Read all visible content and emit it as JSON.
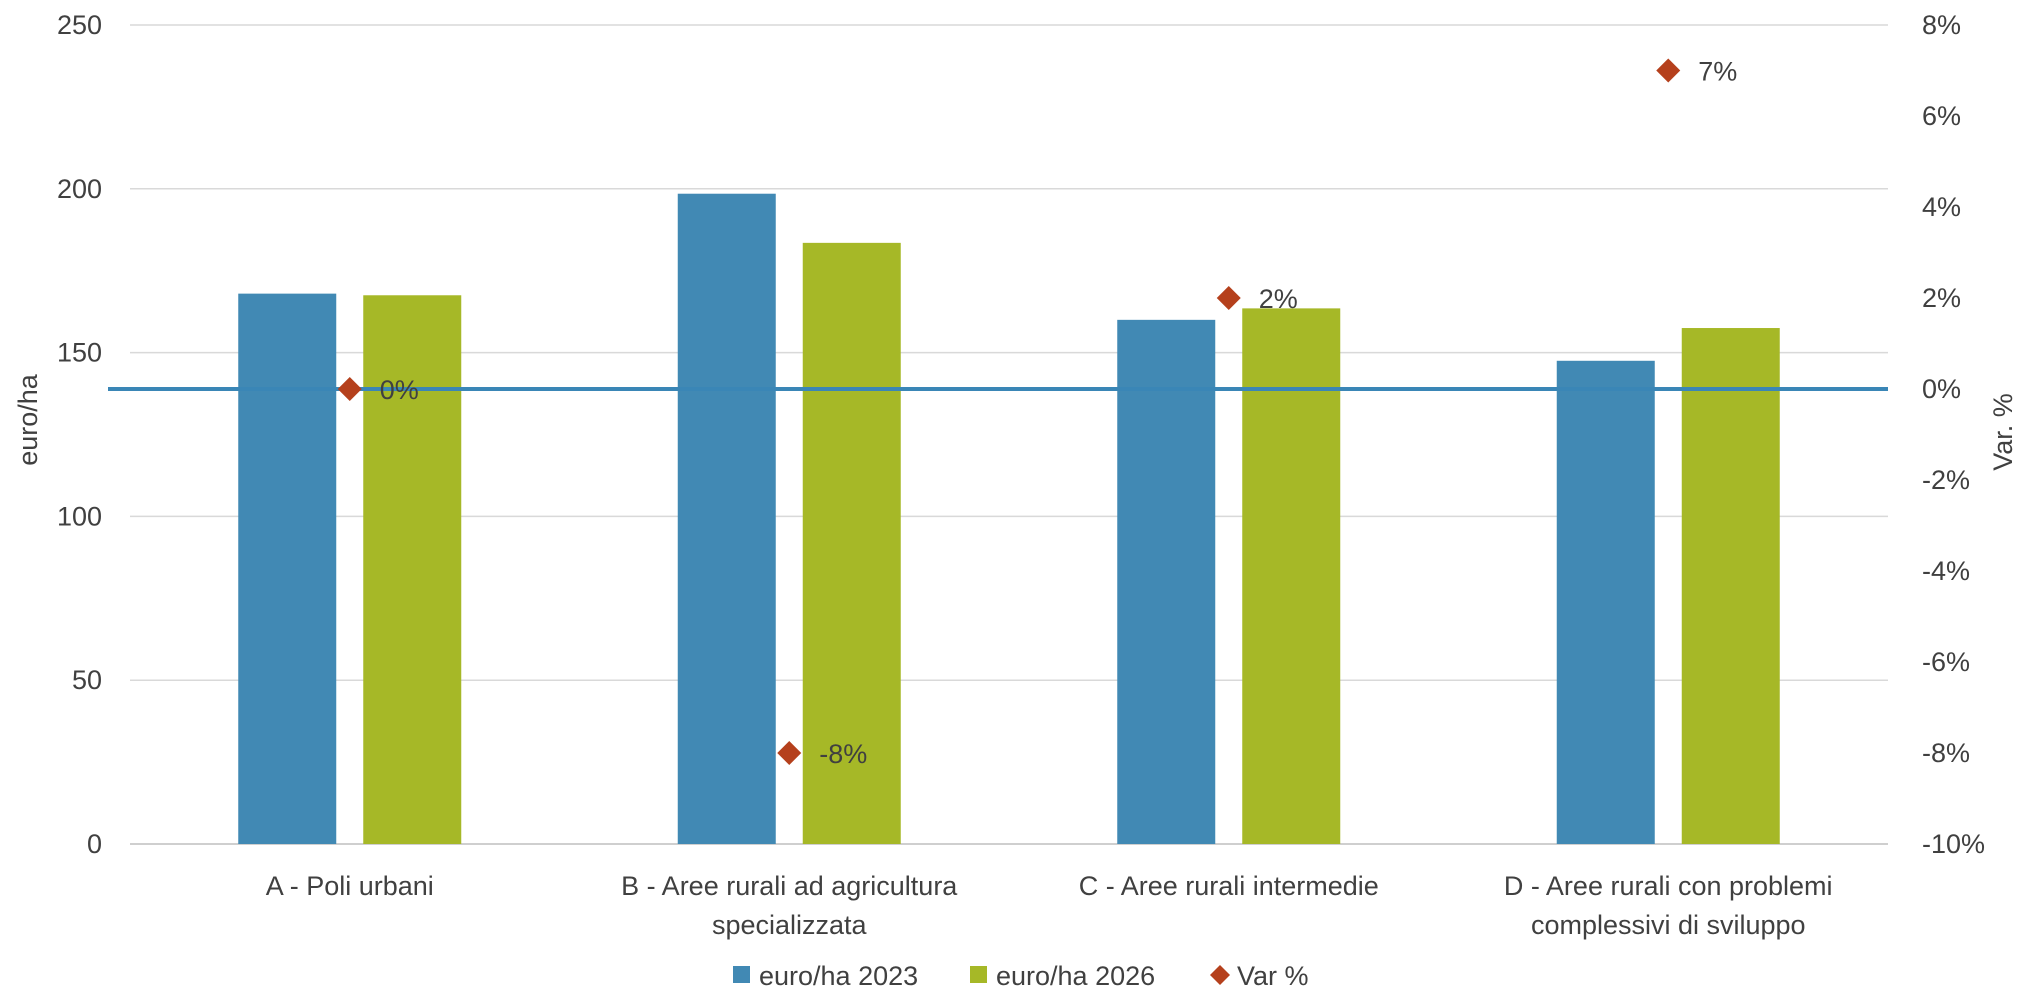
{
  "chart_data": {
    "type": "bar",
    "categories": [
      [
        "A - Poli urbani"
      ],
      [
        "B - Aree rurali ad agricultura",
        "specializzata"
      ],
      [
        "C - Aree rurali intermedie"
      ],
      [
        "D - Aree rurali con problemi",
        "complessivi di sviluppo"
      ]
    ],
    "series": [
      {
        "name": "euro/ha 2023",
        "values": [
          168,
          198.5,
          160,
          147.5
        ],
        "color": "#4189b4",
        "axis": "left"
      },
      {
        "name": "euro/ha 2026",
        "values": [
          167.5,
          183.5,
          163.5,
          157.5
        ],
        "color": "#a6b827",
        "axis": "left"
      }
    ],
    "var_series": {
      "name": "Var %",
      "values": [
        0,
        -8,
        2,
        7
      ],
      "labels": [
        "0%",
        "-8%",
        "2%",
        "7%"
      ],
      "color": "#b5401c",
      "marker": "diamond",
      "axis": "right"
    },
    "ylabel": "euro/ha",
    "y2label": "Var. %",
    "ylim": [
      0,
      250
    ],
    "y_ticks": [
      "0",
      "50",
      "100",
      "150",
      "200",
      "250"
    ],
    "y2lim": [
      -10,
      8
    ],
    "y2_ticks": [
      "-10%",
      "-8%",
      "-6%",
      "-4%",
      "-2%",
      "0%",
      "2%",
      "4%",
      "6%",
      "8%"
    ],
    "zero_line_color": "#3a86b6",
    "grid": true,
    "legend_position": "bottom"
  }
}
